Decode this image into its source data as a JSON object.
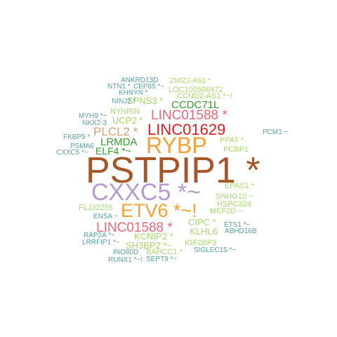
{
  "colors": {
    "brown": "#A65628",
    "lavender": "#B89BCE",
    "orange": "#F7A035",
    "red": "#E31A1C",
    "pink": "#EE6677",
    "tan": "#D4A07A",
    "green": "#33A02C",
    "lightgreen": "#A6D96A",
    "teal": "#5AA0A0"
  },
  "words": [
    {
      "id": "pstpip1",
      "text": "PSTPIP1 *",
      "color": "brown"
    },
    {
      "id": "cxxc5-big",
      "text": "CXXC5 *~",
      "color": "lavender"
    },
    {
      "id": "rybp",
      "text": "RYBP",
      "color": "orange"
    },
    {
      "id": "etv6",
      "text": "ETV6 *~!",
      "color": "orange"
    },
    {
      "id": "linc01629",
      "text": "LINC01629",
      "color": "red"
    },
    {
      "id": "linc01588-top",
      "text": "LINC01588 *",
      "color": "pink"
    },
    {
      "id": "linc01588-bottom",
      "text": "LINC01588 *",
      "color": "pink"
    },
    {
      "id": "plcl2",
      "text": "PLCL2 *",
      "color": "tan"
    },
    {
      "id": "lrmda",
      "text": "LRMDA",
      "color": "green"
    },
    {
      "id": "elf4",
      "text": "ELF4 *~",
      "color": "green"
    },
    {
      "id": "ccdc71l",
      "text": "CCDC71L",
      "color": "green"
    },
    {
      "id": "spns3",
      "text": "SPNS3 *",
      "color": "lightgreen"
    },
    {
      "id": "ucp2",
      "text": "UCP2 *",
      "color": "lightgreen"
    },
    {
      "id": "nynrin",
      "text": "NYNRIN",
      "color": "lightgreen"
    },
    {
      "id": "loc100506472",
      "text": "LOC100506472",
      "color": "lightgreen"
    },
    {
      "id": "ccnd2-as1",
      "text": "CCND2-AS1 *~!",
      "color": "lightgreen"
    },
    {
      "id": "zmiz1-as1",
      "text": "ZMIZ1-AS1 *",
      "color": "lightgreen"
    },
    {
      "id": "ankrd13d",
      "text": "ANKRD13D",
      "color": "teal"
    },
    {
      "id": "ntn1",
      "text": "NTN1 *",
      "color": "teal"
    },
    {
      "id": "cep85",
      "text": "CEP85 *~",
      "color": "teal"
    },
    {
      "id": "khnyn",
      "text": "KHNYN *",
      "color": "teal"
    },
    {
      "id": "ninj2",
      "text": "NINJ2 *",
      "color": "teal"
    },
    {
      "id": "myh9",
      "text": "MYH9 *~",
      "color": "teal"
    },
    {
      "id": "nkx2-3",
      "text": "NKX2-3",
      "color": "teal"
    },
    {
      "id": "fkbp5",
      "text": "FKBP5 *",
      "color": "teal"
    },
    {
      "id": "psma6",
      "text": "PSMA6",
      "color": "teal"
    },
    {
      "id": "cxxc5-small",
      "text": "CXXC5 *~",
      "color": "teal"
    },
    {
      "id": "pcm1",
      "text": "PCM1 ~",
      "color": "teal"
    },
    {
      "id": "ppat",
      "text": "PPAT *",
      "color": "lightgreen"
    },
    {
      "id": "pcbp1",
      "text": "PCBP1",
      "color": "lightgreen"
    },
    {
      "id": "epas1",
      "text": "EPAS1 *",
      "color": "lightgreen"
    },
    {
      "id": "snhg10",
      "text": "SNHG10 ~",
      "color": "lightgreen"
    },
    {
      "id": "hspc324",
      "text": "HSPC324",
      "color": "lightgreen"
    },
    {
      "id": "mef2d",
      "text": "MEF2D ~",
      "color": "lightgreen"
    },
    {
      "id": "flj32255",
      "text": "FLJ32255",
      "color": "lightgreen"
    },
    {
      "id": "ensa",
      "text": "ENSA ~",
      "color": "teal"
    },
    {
      "id": "cipc",
      "text": "CIPC *",
      "color": "lightgreen"
    },
    {
      "id": "klhl6",
      "text": "KLHL6",
      "color": "lightgreen"
    },
    {
      "id": "ets1",
      "text": "ETS1 *~",
      "color": "teal"
    },
    {
      "id": "abhd16b",
      "text": "ABHD16B",
      "color": "teal"
    },
    {
      "id": "kcnip2",
      "text": "KCNIP2 *",
      "color": "lightgreen"
    },
    {
      "id": "igf2bp3",
      "text": "IGF2BP3",
      "color": "lightgreen"
    },
    {
      "id": "rap2a",
      "text": "RAP2A *~",
      "color": "teal"
    },
    {
      "id": "lrrfip1",
      "text": "LRRFIP1 *~",
      "color": "teal"
    },
    {
      "id": "sh3bp2",
      "text": "SH3BP2 *~",
      "color": "lightgreen"
    },
    {
      "id": "bahcc1",
      "text": "BAHCC1 *",
      "color": "lightgreen"
    },
    {
      "id": "siglec15",
      "text": "SIGLEC15 *~",
      "color": "teal"
    },
    {
      "id": "ino80d",
      "text": "INO80D",
      "color": "teal"
    },
    {
      "id": "runx1",
      "text": "RUNX1 *~!",
      "color": "teal"
    },
    {
      "id": "sept9",
      "text": "SEPT9 *~",
      "color": "teal"
    }
  ]
}
